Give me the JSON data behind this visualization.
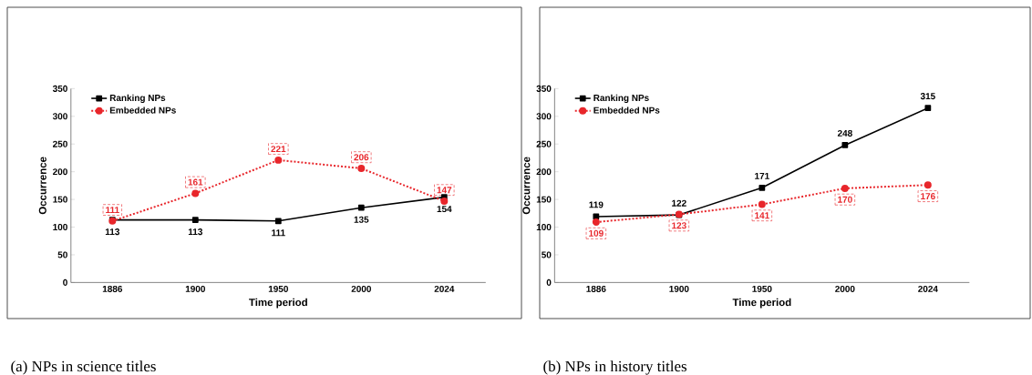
{
  "chart_data": [
    {
      "type": "line",
      "title": "(a) NPs in science titles",
      "xlabel": "Time period",
      "ylabel": "Occurrence",
      "categories": [
        "1886",
        "1900",
        "1950",
        "2000",
        "2024"
      ],
      "series": [
        {
          "name": "Ranking NPs",
          "color": "#000000",
          "marker": "square",
          "line_style": "solid",
          "values": [
            113,
            113,
            111,
            135,
            154
          ]
        },
        {
          "name": "Embedded NPs",
          "color": "#e8262b",
          "marker": "circle",
          "line_style": "dotted",
          "values": [
            111,
            161,
            221,
            206,
            147
          ]
        }
      ],
      "ylim": [
        0,
        350
      ],
      "yticks": [
        0,
        50,
        100,
        150,
        200,
        250,
        300,
        350
      ],
      "grid": false,
      "legend": "top left",
      "data_labels": true
    },
    {
      "type": "line",
      "title": "(b) NPs in history titles",
      "xlabel": "Time period",
      "ylabel": "Occurrence",
      "categories": [
        "1886",
        "1900",
        "1950",
        "2000",
        "2024"
      ],
      "series": [
        {
          "name": "Ranking NPs",
          "color": "#000000",
          "marker": "square",
          "line_style": "solid",
          "values": [
            119,
            122,
            171,
            248,
            315
          ]
        },
        {
          "name": "Embedded NPs",
          "color": "#e8262b",
          "marker": "circle",
          "line_style": "dotted",
          "values": [
            109,
            123,
            141,
            170,
            176
          ]
        }
      ],
      "ylim": [
        0,
        350
      ],
      "yticks": [
        0,
        50,
        100,
        150,
        200,
        250,
        300,
        350
      ],
      "grid": false,
      "legend": "top left",
      "data_labels": true
    }
  ]
}
